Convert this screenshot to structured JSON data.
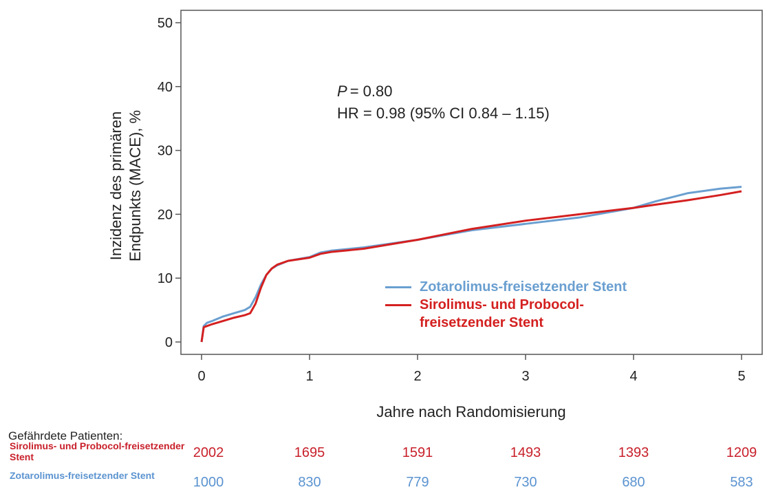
{
  "chart_data": {
    "type": "line",
    "ylabel": [
      "Inzidenz des primären",
      "Endpunkts (MACE), %"
    ],
    "xlabel": "Jahre nach Randomisierung",
    "annotation": {
      "p_symbol": "P",
      "p_text": "= 0.80",
      "hr_text": "HR = 0.98 (95% CI 0.84 – 1.15)"
    },
    "x": [
      0,
      0.02,
      0.05,
      0.1,
      0.2,
      0.3,
      0.4,
      0.45,
      0.5,
      0.55,
      0.6,
      0.65,
      0.7,
      0.8,
      1.0,
      1.1,
      1.2,
      1.5,
      2.0,
      2.5,
      3.0,
      3.5,
      4.0,
      4.2,
      4.5,
      4.8,
      5.0
    ],
    "series": [
      {
        "name": "Zotarolimus-freisetzender Stent",
        "color": "#6a9fd0",
        "values": [
          0,
          2.5,
          3,
          3.3,
          4,
          4.5,
          5,
          5.5,
          7,
          9,
          10.5,
          11.5,
          12,
          12.7,
          13.3,
          14,
          14.3,
          14.8,
          16,
          17.5,
          18.5,
          19.5,
          21,
          22,
          23.3,
          24,
          24.3
        ]
      },
      {
        "name": "Sirolimus- und Probocol-freisetzender Stent",
        "color": "#d42020",
        "values": [
          0,
          2.3,
          2.5,
          2.8,
          3.3,
          3.8,
          4.2,
          4.5,
          6,
          8.5,
          10.5,
          11.5,
          12.1,
          12.7,
          13.2,
          13.8,
          14.1,
          14.6,
          16,
          17.7,
          19,
          20,
          21,
          21.5,
          22.2,
          23,
          23.6
        ]
      }
    ],
    "xlim": [
      0,
      5
    ],
    "xticks": [
      0,
      1,
      2,
      3,
      4,
      5
    ],
    "ylim": [
      0,
      50
    ],
    "yticks": [
      0,
      10,
      20,
      30,
      40,
      50
    ]
  },
  "risk_table": {
    "title": "Gefährdete Patienten:",
    "rows": [
      {
        "label": "Sirolimus- und Probocol-freisetzender Stent",
        "color": "#c8202a",
        "values": [
          2002,
          1695,
          1591,
          1493,
          1393,
          1209
        ]
      },
      {
        "label": "Zotarolimus-freisetzender Stent",
        "color": "#5b93d0",
        "values": [
          1000,
          830,
          779,
          730,
          680,
          583
        ]
      }
    ]
  }
}
